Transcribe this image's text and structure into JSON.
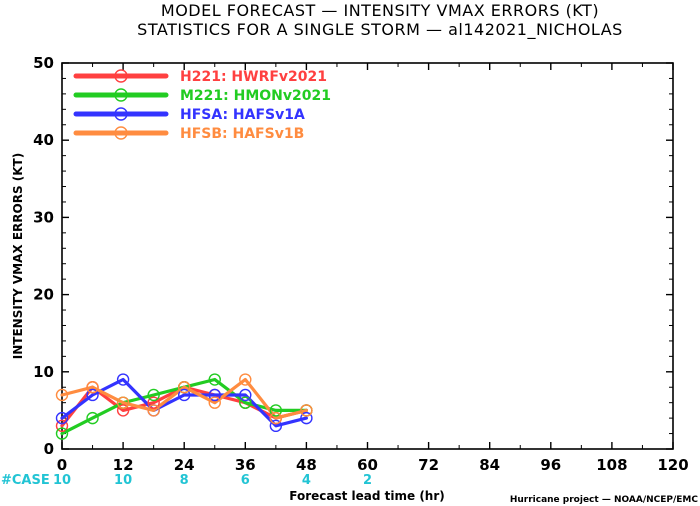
{
  "chart_data": {
    "type": "line",
    "title": "MODEL FORECAST — INTENSITY VMAX ERRORS (KT)",
    "subtitle": "STATISTICS FOR A SINGLE STORM — al142021_NICHOLAS",
    "xlabel": "Forecast lead time (hr)",
    "ylabel": "INTENSITY VMAX ERRORS (KT)",
    "xlim": [
      0,
      120
    ],
    "ylim": [
      0,
      50
    ],
    "xticks": [
      0,
      12,
      24,
      36,
      48,
      60,
      72,
      84,
      96,
      108,
      120
    ],
    "yticks": [
      0,
      10,
      20,
      30,
      40,
      50
    ],
    "grid": false,
    "legend_position": "top-left",
    "series": [
      {
        "name": "H221: HWRFv2021",
        "color": "#ff4040",
        "x": [
          0,
          6,
          12,
          18,
          24,
          30,
          36,
          42,
          48
        ],
        "y": [
          3,
          8,
          5,
          6,
          8,
          7,
          6,
          4,
          5
        ]
      },
      {
        "name": "M221: HMONv2021",
        "color": "#22cc22",
        "x": [
          0,
          6,
          12,
          18,
          24,
          30,
          36,
          42,
          48
        ],
        "y": [
          2,
          4,
          6,
          7,
          8,
          9,
          6,
          5,
          5
        ]
      },
      {
        "name": "HFSA: HAFSv1A",
        "color": "#3333ff",
        "x": [
          0,
          6,
          12,
          18,
          24,
          30,
          36,
          42,
          48
        ],
        "y": [
          4,
          7,
          9,
          5,
          7,
          7,
          7,
          3,
          4
        ]
      },
      {
        "name": "HFSB: HAFSv1B",
        "color": "#ff8c40",
        "x": [
          0,
          6,
          12,
          18,
          24,
          30,
          36,
          42,
          48
        ],
        "y": [
          7,
          8,
          6,
          5,
          8,
          6,
          9,
          4,
          5
        ]
      }
    ],
    "cases": {
      "label": "#CASE",
      "color": "#22c4d4",
      "x": [
        0,
        12,
        24,
        36,
        48,
        60
      ],
      "values": [
        "10",
        "10",
        "8",
        "6",
        "4",
        "2"
      ]
    },
    "footer": "Hurricane project — NOAA/NCEP/EMC"
  }
}
